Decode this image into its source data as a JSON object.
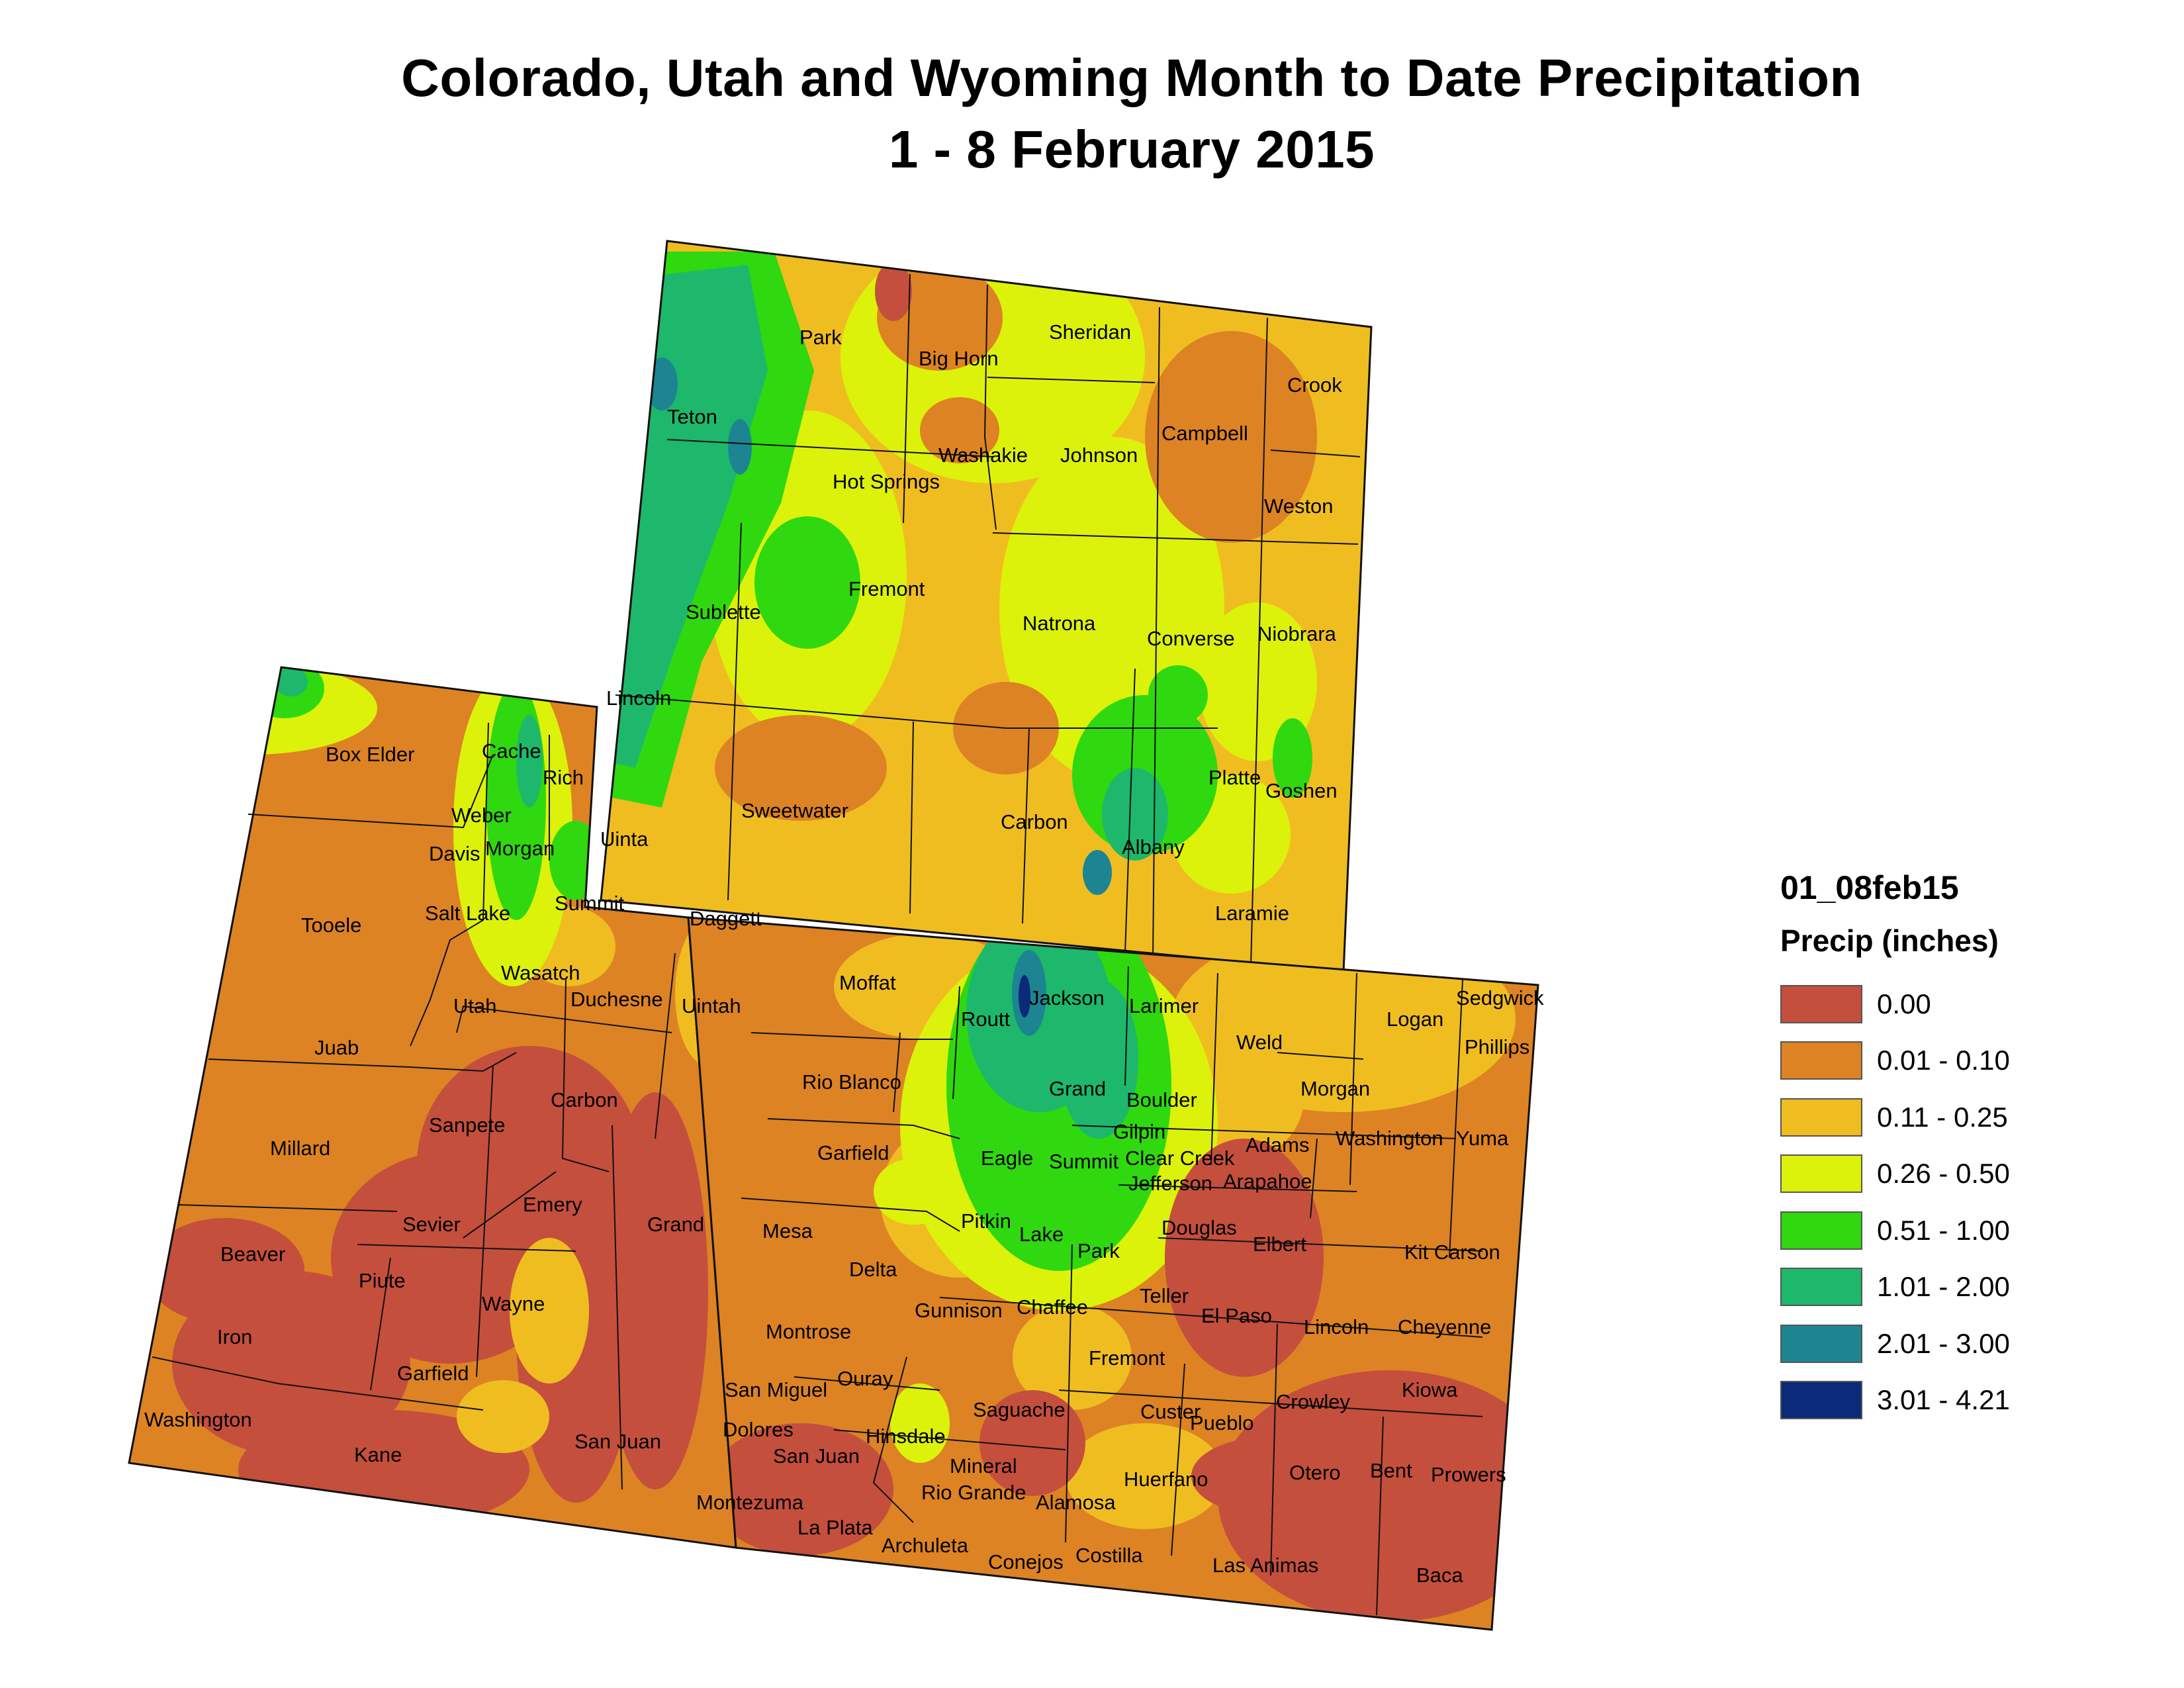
{
  "title": {
    "line1": "Colorado, Utah and Wyoming Month to Date Precipitation",
    "line2": "1 - 8 February 2015"
  },
  "legend": {
    "layer_name": "01_08feb15",
    "field": "Precip (inches)",
    "classes": [
      {
        "label": "0.00",
        "color": "#c44f3d"
      },
      {
        "label": "0.01 - 0.10",
        "color": "#dd8324"
      },
      {
        "label": "0.11 - 0.25",
        "color": "#f0bd21"
      },
      {
        "label": "0.26 - 0.50",
        "color": "#dcf20a"
      },
      {
        "label": "0.51 - 1.00",
        "color": "#2fd80f"
      },
      {
        "label": "1.01 - 2.00",
        "color": "#1db86b"
      },
      {
        "label": "2.01 - 3.00",
        "color": "#1d8591"
      },
      {
        "label": "3.01 - 4.21",
        "color": "#0c2a7a"
      }
    ]
  },
  "map": {
    "states": [
      "Wyoming",
      "Utah",
      "Colorado"
    ],
    "counties": {
      "wyoming": [
        "Park",
        "Big Horn",
        "Sheridan",
        "Crook",
        "Teton",
        "Washakie",
        "Johnson",
        "Campbell",
        "Hot Springs",
        "Weston",
        "Fremont",
        "Natrona",
        "Converse",
        "Niobrara",
        "Sublette",
        "Lincoln",
        "Platte",
        "Goshen",
        "Sweetwater",
        "Carbon",
        "Albany",
        "Uinta",
        "Laramie"
      ],
      "utah": [
        "Box Elder",
        "Cache",
        "Rich",
        "Weber",
        "Davis",
        "Morgan",
        "Tooele",
        "Salt Lake",
        "Summit",
        "Daggett",
        "Wasatch",
        "Utah",
        "Duchesne",
        "Uintah",
        "Juab",
        "Carbon",
        "Sanpete",
        "Millard",
        "Emery",
        "Sevier",
        "Grand",
        "Beaver",
        "Piute",
        "Wayne",
        "Iron",
        "Garfield",
        "Washington",
        "Kane",
        "San Juan"
      ],
      "colorado": [
        "Moffat",
        "Jackson",
        "Larimer",
        "Logan",
        "Sedgwick",
        "Phillips",
        "Routt",
        "Weld",
        "Rio Blanco",
        "Grand",
        "Boulder",
        "Morgan",
        "Gilpin",
        "Adams",
        "Washington",
        "Yuma",
        "Garfield",
        "Eagle",
        "Summit",
        "Clear Creek",
        "Jefferson",
        "Arapahoe",
        "Mesa",
        "Pitkin",
        "Lake",
        "Park",
        "Douglas",
        "Elbert",
        "Kit Carson",
        "Delta",
        "Chaffee",
        "Teller",
        "El Paso",
        "Gunnison",
        "Lincoln",
        "Cheyenne",
        "Montrose",
        "Fremont",
        "San Miguel",
        "Ouray",
        "Saguache",
        "Custer",
        "Crowley",
        "Kiowa",
        "Dolores",
        "Hinsdale",
        "Pueblo",
        "San Juan",
        "Mineral",
        "Otero",
        "Bent",
        "Prowers",
        "Huerfano",
        "Rio Grande",
        "Alamosa",
        "Montezuma",
        "La Plata",
        "Archuleta",
        "Conejos",
        "Costilla",
        "Las Animas",
        "Baca"
      ]
    }
  }
}
